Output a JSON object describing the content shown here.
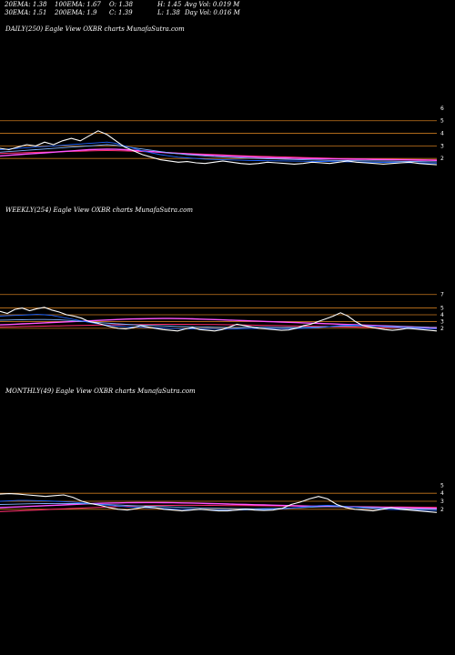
{
  "header": {
    "ema20": "20EMA: 1.38",
    "ema100": "100EMA: 1.67",
    "open": "O: 1.38",
    "high": "H: 1.45",
    "avg_vol": "Avg Vol: 0.019 M",
    "ema30": "30EMA: 1.51",
    "ema200": "200EMA: 1.9",
    "close": "C: 1.39",
    "low": "L: 1.38",
    "day_vol": "Day Vol: 0.016  M"
  },
  "colors": {
    "background": "#000000",
    "price": "#ffffff",
    "ema_fast": "#1e64ff",
    "ema_mid": "#7fb2ff",
    "ema_slow": "#ff55ff",
    "ema_long": "#ff2e6e",
    "ref_lines": "#c8781e"
  },
  "panels": [
    {
      "title": "DAILY(250) Eagle   View  OXBR charts MunafaSutra.com"
    },
    {
      "title": "WEEKLY(254) Eagle   View  OXBR charts MunafaSutra.com"
    },
    {
      "title": "MONTHLY(49) Eagle   View  OXBR charts MunafaSutra.com"
    }
  ],
  "chart_data": [
    {
      "type": "line",
      "timeframe": "DAILY",
      "points": 250,
      "ylim": [
        1,
        6.5
      ],
      "y_ticks": [
        6,
        5,
        4,
        3,
        2
      ],
      "reference_levels": [
        5,
        4,
        3,
        2
      ],
      "series": [
        {
          "values": [
            2.8,
            2.7,
            2.9,
            3.1,
            3.0,
            3.3,
            3.1,
            3.4,
            3.6,
            3.4,
            3.8,
            4.2,
            3.9,
            3.4,
            2.9,
            2.6,
            2.3,
            2.1,
            1.9,
            1.8,
            1.7,
            1.75,
            1.65,
            1.6,
            1.7,
            1.8,
            1.7,
            1.6,
            1.55,
            1.6,
            1.7,
            1.65,
            1.6,
            1.55,
            1.6,
            1.7,
            1.65,
            1.6,
            1.7,
            1.8,
            1.7,
            1.65,
            1.6,
            1.55,
            1.6,
            1.65,
            1.7,
            1.6,
            1.55,
            1.5
          ]
        },
        {
          "values": [
            2.7,
            2.75,
            2.8,
            2.85,
            2.9,
            2.95,
            3.0,
            3.05,
            3.1,
            3.15,
            3.2,
            3.25,
            3.3,
            3.2,
            3.0,
            2.8,
            2.6,
            2.45,
            2.3,
            2.2,
            2.1,
            2.05,
            2.0,
            1.95,
            1.92,
            1.9,
            1.88,
            1.86,
            1.84,
            1.83,
            1.82,
            1.81,
            1.8,
            1.79,
            1.78,
            1.77,
            1.76,
            1.75,
            1.74,
            1.73,
            1.72,
            1.71,
            1.7,
            1.69,
            1.68,
            1.67,
            1.66,
            1.65,
            1.64,
            1.63
          ]
        },
        {
          "values": [
            2.5,
            2.55,
            2.6,
            2.65,
            2.7,
            2.75,
            2.8,
            2.85,
            2.9,
            2.95,
            3.0,
            3.05,
            3.1,
            3.05,
            2.95,
            2.85,
            2.75,
            2.65,
            2.55,
            2.45,
            2.38,
            2.3,
            2.25,
            2.2,
            2.15,
            2.12,
            2.08,
            2.05,
            2.02,
            2.0,
            1.98,
            1.96,
            1.94,
            1.92,
            1.9,
            1.88,
            1.86,
            1.85,
            1.84,
            1.83,
            1.82,
            1.81,
            1.8,
            1.79,
            1.78,
            1.77,
            1.76,
            1.75,
            1.74,
            1.73
          ]
        },
        {
          "values": [
            2.2,
            2.25,
            2.3,
            2.35,
            2.4,
            2.45,
            2.5,
            2.55,
            2.6,
            2.65,
            2.7,
            2.72,
            2.74,
            2.73,
            2.7,
            2.65,
            2.6,
            2.55,
            2.5,
            2.45,
            2.4,
            2.36,
            2.32,
            2.28,
            2.25,
            2.22,
            2.19,
            2.16,
            2.13,
            2.1,
            2.08,
            2.06,
            2.04,
            2.02,
            2.0,
            1.99,
            1.98,
            1.97,
            1.96,
            1.95,
            1.94,
            1.93,
            1.92,
            1.91,
            1.9,
            1.89,
            1.88,
            1.87,
            1.86,
            1.85
          ]
        },
        {
          "values": [
            2.4,
            2.42,
            2.44,
            2.46,
            2.48,
            2.5,
            2.52,
            2.54,
            2.56,
            2.58,
            2.6,
            2.62,
            2.63,
            2.62,
            2.6,
            2.58,
            2.55,
            2.52,
            2.49,
            2.46,
            2.43,
            2.4,
            2.37,
            2.34,
            2.31,
            2.28,
            2.25,
            2.22,
            2.2,
            2.18,
            2.16,
            2.14,
            2.12,
            2.1,
            2.08,
            2.06,
            2.04,
            2.02,
            2.0,
            1.99,
            1.98,
            1.97,
            1.96,
            1.95,
            1.94,
            1.93,
            1.92,
            1.91,
            1.9,
            1.9
          ]
        }
      ]
    },
    {
      "type": "line",
      "timeframe": "WEEKLY",
      "points": 254,
      "ylim": [
        0.5,
        7.5
      ],
      "y_ticks": [
        7,
        5,
        4,
        3,
        2
      ],
      "reference_levels": [
        7,
        5,
        4,
        3,
        2
      ],
      "series": [
        {
          "values": [
            4.5,
            4.2,
            4.8,
            5.0,
            4.6,
            4.9,
            5.1,
            4.7,
            4.4,
            4.0,
            3.8,
            3.5,
            3.0,
            2.8,
            2.5,
            2.2,
            2.0,
            1.9,
            2.1,
            2.4,
            2.2,
            2.0,
            1.8,
            1.7,
            1.6,
            1.9,
            2.1,
            1.8,
            1.7,
            1.6,
            1.8,
            2.2,
            2.6,
            2.4,
            2.2,
            2.0,
            1.9,
            1.8,
            1.7,
            1.75,
            2.0,
            2.4,
            2.6,
            3.0,
            3.4,
            3.8,
            4.3,
            3.8,
            3.0,
            2.4,
            2.2,
            2.0,
            1.8,
            1.7,
            1.8,
            2.0,
            1.9,
            1.8,
            1.7,
            1.6
          ]
        },
        {
          "values": [
            3.8,
            3.85,
            3.9,
            3.95,
            4.0,
            4.05,
            4.0,
            3.9,
            3.7,
            3.5,
            3.3,
            3.1,
            2.9,
            2.7,
            2.55,
            2.4,
            2.3,
            2.22,
            2.18,
            2.15,
            2.12,
            2.1,
            2.05,
            2.0,
            1.96,
            1.94,
            1.93,
            1.92,
            1.9,
            1.88,
            1.87,
            1.88,
            1.92,
            1.95,
            1.97,
            1.98,
            1.98,
            1.97,
            1.96,
            1.95,
            1.96,
            2.0,
            2.05,
            2.12,
            2.2,
            2.3,
            2.4,
            2.45,
            2.45,
            2.4,
            2.35,
            2.3,
            2.22,
            2.15,
            2.1,
            2.06,
            2.02,
            1.98,
            1.94,
            1.9
          ]
        },
        {
          "values": [
            3.2,
            3.22,
            3.24,
            3.26,
            3.28,
            3.3,
            3.3,
            3.28,
            3.24,
            3.18,
            3.1,
            3.02,
            2.95,
            2.88,
            2.8,
            2.72,
            2.65,
            2.58,
            2.52,
            2.48,
            2.44,
            2.4,
            2.36,
            2.32,
            2.28,
            2.25,
            2.22,
            2.2,
            2.18,
            2.16,
            2.14,
            2.13,
            2.13,
            2.14,
            2.15,
            2.15,
            2.15,
            2.14,
            2.13,
            2.12,
            2.12,
            2.14,
            2.16,
            2.2,
            2.24,
            2.28,
            2.32,
            2.35,
            2.36,
            2.36,
            2.35,
            2.33,
            2.31,
            2.28,
            2.25,
            2.22,
            2.19,
            2.16,
            2.13,
            2.1
          ]
        },
        {
          "values": [
            2.5,
            2.55,
            2.6,
            2.65,
            2.7,
            2.75,
            2.8,
            2.85,
            2.9,
            2.95,
            3.0,
            3.05,
            3.1,
            3.15,
            3.2,
            3.25,
            3.3,
            3.35,
            3.38,
            3.4,
            3.42,
            3.44,
            3.45,
            3.45,
            3.44,
            3.42,
            3.4,
            3.36,
            3.32,
            3.28,
            3.24,
            3.2,
            3.16,
            3.12,
            3.08,
            3.04,
            3.0,
            2.96,
            2.92,
            2.88,
            2.84,
            2.8,
            2.76,
            2.72,
            2.68,
            2.64,
            2.6,
            2.56,
            2.52,
            2.48,
            2.44,
            2.4,
            2.36,
            2.32,
            2.28,
            2.24,
            2.2,
            2.16,
            2.12,
            2.1
          ]
        },
        {
          "values": [
            2.2,
            2.22,
            2.24,
            2.26,
            2.28,
            2.3,
            2.32,
            2.34,
            2.36,
            2.38,
            2.4,
            2.42,
            2.44,
            2.46,
            2.48,
            2.5,
            2.52,
            2.53,
            2.54,
            2.55,
            2.56,
            2.57,
            2.58,
            2.58,
            2.58,
            2.58,
            2.57,
            2.56,
            2.55,
            2.54,
            2.53,
            2.52,
            2.5,
            2.48,
            2.46,
            2.44,
            2.42,
            2.4,
            2.38,
            2.36,
            2.34,
            2.32,
            2.3,
            2.28,
            2.26,
            2.24,
            2.22,
            2.2,
            2.18,
            2.16,
            2.14,
            2.12,
            2.1,
            2.08,
            2.06,
            2.04,
            2.02,
            2.0,
            1.98,
            1.96
          ]
        }
      ]
    },
    {
      "type": "line",
      "timeframe": "MONTHLY",
      "points": 49,
      "ylim": [
        0.5,
        5.5
      ],
      "y_ticks": [
        5,
        4,
        3,
        2
      ],
      "reference_levels": [
        4,
        3,
        2
      ],
      "series": [
        {
          "values": [
            3.9,
            3.95,
            3.9,
            3.8,
            3.7,
            3.6,
            3.7,
            3.8,
            3.5,
            3.0,
            2.7,
            2.5,
            2.2,
            2.0,
            1.9,
            2.1,
            2.3,
            2.2,
            2.0,
            1.9,
            1.8,
            1.9,
            2.0,
            1.9,
            1.8,
            1.8,
            1.9,
            2.0,
            1.9,
            1.85,
            1.9,
            2.1,
            2.6,
            2.9,
            3.3,
            3.6,
            3.3,
            2.6,
            2.2,
            2.0,
            1.9,
            1.8,
            2.0,
            2.2,
            2.0,
            1.9,
            1.8,
            1.7,
            1.6
          ]
        },
        {
          "values": [
            3.0,
            3.05,
            3.1,
            3.1,
            3.08,
            3.05,
            3.0,
            2.95,
            2.9,
            2.8,
            2.7,
            2.6,
            2.5,
            2.4,
            2.3,
            2.25,
            2.2,
            2.15,
            2.1,
            2.05,
            2.0,
            1.98,
            1.96,
            1.94,
            1.92,
            1.9,
            1.9,
            1.92,
            1.95,
            1.98,
            2.0,
            2.05,
            2.15,
            2.25,
            2.35,
            2.45,
            2.5,
            2.45,
            2.35,
            2.25,
            2.15,
            2.08,
            2.02,
            1.98,
            1.95,
            1.92,
            1.9,
            1.88,
            1.85
          ]
        },
        {
          "values": [
            2.6,
            2.62,
            2.65,
            2.68,
            2.7,
            2.72,
            2.73,
            2.73,
            2.72,
            2.7,
            2.67,
            2.63,
            2.58,
            2.53,
            2.48,
            2.44,
            2.4,
            2.36,
            2.32,
            2.28,
            2.24,
            2.2,
            2.17,
            2.14,
            2.12,
            2.1,
            2.08,
            2.07,
            2.07,
            2.08,
            2.1,
            2.12,
            2.16,
            2.2,
            2.25,
            2.3,
            2.33,
            2.34,
            2.32,
            2.29,
            2.25,
            2.21,
            2.17,
            2.13,
            2.1,
            2.07,
            2.04,
            2.02,
            2.0
          ]
        },
        {
          "values": [
            2.2,
            2.25,
            2.3,
            2.35,
            2.4,
            2.45,
            2.5,
            2.55,
            2.6,
            2.65,
            2.7,
            2.75,
            2.78,
            2.8,
            2.82,
            2.83,
            2.84,
            2.84,
            2.83,
            2.82,
            2.8,
            2.78,
            2.75,
            2.72,
            2.69,
            2.66,
            2.63,
            2.6,
            2.57,
            2.54,
            2.51,
            2.48,
            2.45,
            2.42,
            2.4,
            2.38,
            2.36,
            2.34,
            2.32,
            2.3,
            2.28,
            2.26,
            2.24,
            2.22,
            2.2,
            2.18,
            2.16,
            2.14,
            2.12
          ]
        },
        {
          "values": [
            1.7,
            1.75,
            1.8,
            1.85,
            1.9,
            1.95,
            2.0,
            2.05,
            2.1,
            2.15,
            2.2,
            2.25,
            2.3,
            2.34,
            2.38,
            2.41,
            2.44,
            2.46,
            2.48,
            2.49,
            2.5,
            2.5,
            2.5,
            2.49,
            2.48,
            2.47,
            2.46,
            2.45,
            2.44,
            2.43,
            2.42,
            2.41,
            2.4,
            2.39,
            2.38,
            2.37,
            2.36,
            2.35,
            2.34,
            2.33,
            2.32,
            2.31,
            2.3,
            2.29,
            2.28,
            2.27,
            2.26,
            2.25,
            2.24
          ]
        }
      ]
    }
  ]
}
